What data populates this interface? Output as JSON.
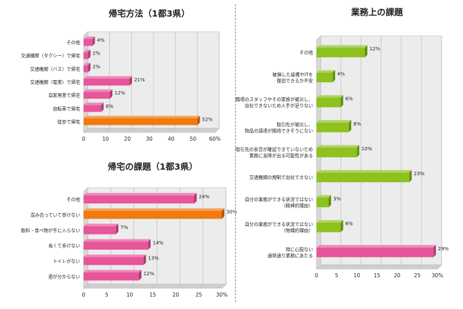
{
  "chart_data": [
    {
      "type": "bar",
      "orientation": "horizontal",
      "title": "帰宅方法（1都3県）",
      "categories": [
        "その他",
        "交通機関（タクシー）で帰宅",
        "交通機関（バス）で帰宅",
        "交通機関（電車）で帰宅",
        "自家用車で帰宅",
        "自転車で帰宅",
        "徒歩で帰宅"
      ],
      "values": [
        4,
        2,
        2,
        21,
        12,
        8,
        52
      ],
      "value_labels": [
        "4%",
        "2%",
        "2%",
        "21%",
        "12%",
        "8%",
        "52%"
      ],
      "highlight_index": 6,
      "xlim": [
        0,
        60
      ],
      "xticks": [
        "0",
        "10",
        "20",
        "30",
        "40",
        "50",
        "60%"
      ],
      "colors": {
        "bar": "#e8559a",
        "highlight": "#f07a10"
      }
    },
    {
      "type": "bar",
      "orientation": "horizontal",
      "title": "帰宅の課題（1都3県）",
      "categories": [
        "その他",
        "混み合っていて歩けない",
        "飲料・食べ物が手に入らない",
        "長くて歩けない",
        "トイレがない",
        "道が分からない"
      ],
      "values": [
        24,
        30,
        7,
        14,
        13,
        12
      ],
      "value_labels": [
        "24%",
        "30%",
        "7%",
        "14%",
        "13%",
        "12%"
      ],
      "highlight_index": 1,
      "xlim": [
        0,
        30
      ],
      "xticks": [
        "0",
        "5",
        "10",
        "15",
        "20",
        "25",
        "30%"
      ],
      "colors": {
        "bar": "#e8559a",
        "highlight": "#f07a10"
      }
    },
    {
      "type": "bar",
      "orientation": "horizontal",
      "title": "業務上の課題",
      "categories": [
        [
          "その他"
        ],
        [
          "破損した設備やITを",
          "復旧できるか不安"
        ],
        [
          "職場のスタッフやその家族が被災し、",
          "出社できないため人手が足りない"
        ],
        [
          "取引先が被災し、",
          "物品の調達が期待できそうにない"
        ],
        [
          "取引先の安否が確認できていないため",
          "業務に支障が出る可能性がある"
        ],
        [
          "交通機関の規制で出社できない"
        ],
        [
          "自分の業務ができる状況ではない",
          "（精神的理由）"
        ],
        [
          "自分の業務ができる状況ではない",
          "（物理的理由）"
        ],
        [
          "特に心配ない",
          "通常通り業務にあたる"
        ]
      ],
      "values": [
        12,
        4,
        6,
        8,
        10,
        23,
        3,
        6,
        29
      ],
      "value_labels": [
        "12%",
        "4%",
        "6%",
        "8%",
        "10%",
        "23%",
        "3%",
        "6%",
        "29%"
      ],
      "highlight_index": 8,
      "xlim": [
        0,
        30
      ],
      "xticks": [
        "0",
        "5",
        "10",
        "15",
        "20",
        "25",
        "30%"
      ],
      "colors": {
        "bar": "#8dc21f",
        "highlight": "#e8559a"
      }
    }
  ]
}
